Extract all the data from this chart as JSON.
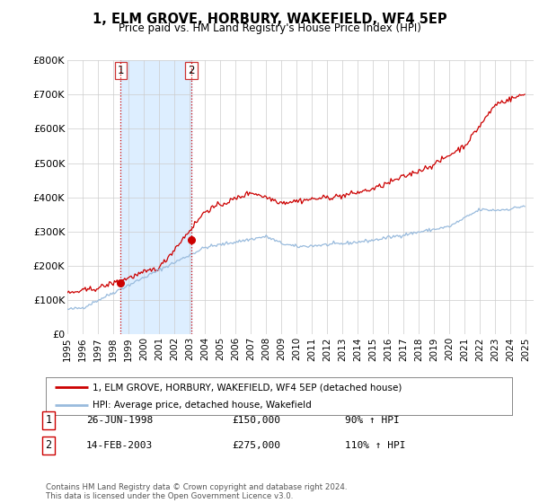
{
  "title": "1, ELM GROVE, HORBURY, WAKEFIELD, WF4 5EP",
  "subtitle": "Price paid vs. HM Land Registry's House Price Index (HPI)",
  "ylabel_values": [
    "£0",
    "£100K",
    "£200K",
    "£300K",
    "£400K",
    "£500K",
    "£600K",
    "£700K",
    "£800K"
  ],
  "ylim": [
    0,
    800000
  ],
  "xlim_start": 1995.0,
  "xlim_end": 2025.5,
  "sale1_year": 1998.48,
  "sale1_price": 150000,
  "sale1_label": "1",
  "sale2_year": 2003.12,
  "sale2_price": 275000,
  "sale2_label": "2",
  "red_line_color": "#cc0000",
  "blue_line_color": "#99bbdd",
  "shade_color": "#ddeeff",
  "marker_color": "#cc0000",
  "dashed_line_color": "#cc0000",
  "legend_line1": "1, ELM GROVE, HORBURY, WAKEFIELD, WF4 5EP (detached house)",
  "legend_line2": "HPI: Average price, detached house, Wakefield",
  "table_row1_num": "1",
  "table_row1_date": "26-JUN-1998",
  "table_row1_price": "£150,000",
  "table_row1_hpi": "90% ↑ HPI",
  "table_row2_num": "2",
  "table_row2_date": "14-FEB-2003",
  "table_row2_price": "£275,000",
  "table_row2_hpi": "110% ↑ HPI",
  "footer": "Contains HM Land Registry data © Crown copyright and database right 2024.\nThis data is licensed under the Open Government Licence v3.0.",
  "background_color": "#ffffff",
  "grid_color": "#cccccc"
}
